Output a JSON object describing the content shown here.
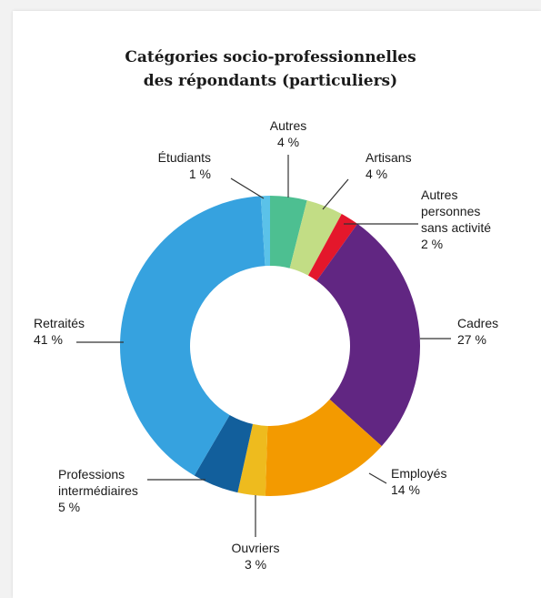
{
  "chart_data": {
    "type": "pie",
    "variant": "donut",
    "title": "Catégories socio-professionnelles des répondants (particuliers)",
    "title_lines": [
      "Catégories socio-professionnelles",
      "des répondants (particuliers)"
    ],
    "unit": "%",
    "slices": [
      {
        "key": "autres",
        "label_lines": [
          "Autres"
        ],
        "value_text": "4 %",
        "value": 4,
        "color": "#4dbf91"
      },
      {
        "key": "artisans",
        "label_lines": [
          "Artisans"
        ],
        "value_text": "4 %",
        "value": 4,
        "color": "#c2dd85"
      },
      {
        "key": "sans-activite",
        "label_lines": [
          "Autres",
          "personnes",
          "sans activité"
        ],
        "value_text": "2 %",
        "value": 2,
        "color": "#e4172b"
      },
      {
        "key": "cadres",
        "label_lines": [
          "Cadres"
        ],
        "value_text": "27 %",
        "value": 27,
        "color": "#612682"
      },
      {
        "key": "employes",
        "label_lines": [
          "Employés"
        ],
        "value_text": "14 %",
        "value": 14,
        "color": "#f39a00"
      },
      {
        "key": "ouvriers",
        "label_lines": [
          "Ouvriers"
        ],
        "value_text": "3 %",
        "value": 3,
        "color": "#eebb1e"
      },
      {
        "key": "prof-inter",
        "label_lines": [
          "Professions",
          "intermédiaires"
        ],
        "value_text": "5 %",
        "value": 5,
        "color": "#125f9c"
      },
      {
        "key": "retraites",
        "label_lines": [
          "Retraités"
        ],
        "value_text": "41 %",
        "value": 41,
        "color": "#36a2df"
      },
      {
        "key": "etudiants",
        "label_lines": [
          "Étudiants"
        ],
        "value_text": "1 %",
        "value": 1,
        "color": "#5bc2e9"
      }
    ]
  }
}
